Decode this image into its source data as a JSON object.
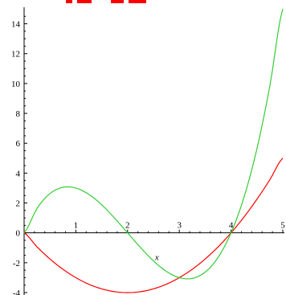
{
  "chart_data": {
    "type": "line",
    "title": "",
    "xlabel": "x",
    "ylabel": "",
    "xlim": [
      0,
      5
    ],
    "ylim": [
      -4,
      15
    ],
    "x_ticks": [
      1,
      2,
      3,
      4,
      5
    ],
    "y_ticks": [
      -4,
      -2,
      0,
      2,
      4,
      6,
      8,
      10,
      12,
      14
    ],
    "x_tick_labels": [
      "1",
      "2",
      "3",
      "4",
      "5"
    ],
    "y_tick_labels": [
      "-4",
      "-2",
      "0",
      "2",
      "4",
      "6",
      "8",
      "10",
      "12",
      "14"
    ],
    "grid": false,
    "series": [
      {
        "color": "#ff0000",
        "x": [
          0,
          0.25,
          0.5,
          0.75,
          1,
          1.25,
          1.5,
          1.75,
          2,
          2.25,
          2.5,
          2.75,
          3,
          3.25,
          3.5,
          3.75,
          4,
          4.25,
          4.5,
          4.75,
          5
        ],
        "y": [
          0,
          -0.94,
          -1.75,
          -2.44,
          -3,
          -3.44,
          -3.75,
          -3.94,
          -4,
          -3.94,
          -3.75,
          -3.44,
          -3,
          -2.44,
          -1.75,
          -0.94,
          0,
          1.06,
          2.25,
          3.56,
          5
        ]
      },
      {
        "color": "#33cc33",
        "x": [
          0,
          0.25,
          0.5,
          0.75,
          1,
          1.25,
          1.5,
          1.75,
          2,
          2.25,
          2.5,
          2.75,
          3,
          3.25,
          3.5,
          3.75,
          4,
          4.25,
          4.5,
          4.75,
          5
        ],
        "y": [
          0,
          1.64,
          2.63,
          3.05,
          3,
          2.58,
          1.88,
          0.98,
          0,
          -0.98,
          -1.88,
          -2.58,
          -3,
          -3.05,
          -2.63,
          -1.64,
          0,
          2.38,
          5.63,
          9.84,
          15
        ]
      }
    ]
  }
}
